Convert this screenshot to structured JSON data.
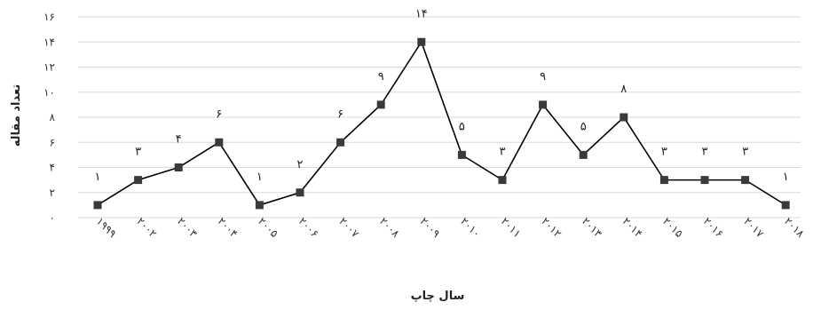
{
  "chart_data": {
    "type": "line",
    "categories": [
      "۱۹۹۹",
      "۲۰۰۲",
      "۲۰۰۳",
      "۲۰۰۴",
      "۲۰۰۵",
      "۲۰۰۶",
      "۲۰۰۷",
      "۲۰۰۸",
      "۲۰۰۹",
      "۲۰۱۰",
      "۲۰۱۱",
      "۲۰۱۲",
      "۲۰۱۳",
      "۲۰۱۴",
      "۲۰۱۵",
      "۲۰۱۶",
      "۲۰۱۷",
      "۲۰۱۸"
    ],
    "values": [
      1,
      3,
      4,
      6,
      1,
      2,
      6,
      9,
      14,
      5,
      3,
      9,
      5,
      8,
      3,
      3,
      3,
      1
    ],
    "data_labels": [
      "۱",
      "۳",
      "۴",
      "۶",
      "۱",
      "۲",
      "۶",
      "۹",
      "۱۴",
      "۵",
      "۳",
      "۹",
      "۵",
      "۸",
      "۳",
      "۳",
      "۳",
      "۱"
    ],
    "y_ticks": [
      {
        "value": 0,
        "label": "۰"
      },
      {
        "value": 2,
        "label": "۲"
      },
      {
        "value": 4,
        "label": "۴"
      },
      {
        "value": 6,
        "label": "۶"
      },
      {
        "value": 8,
        "label": "۸"
      },
      {
        "value": 10,
        "label": "۱۰"
      },
      {
        "value": 12,
        "label": "۱۲"
      },
      {
        "value": 14,
        "label": "۱۴"
      },
      {
        "value": 16,
        "label": "۱۶"
      }
    ],
    "ylim": [
      0,
      16
    ],
    "xlabel": "سال چاپ",
    "ylabel": "تعداد مقاله",
    "grid": true,
    "colors": {
      "line": "#000000",
      "marker": "#3a3a3a",
      "grid": "#d9d9d9"
    }
  }
}
